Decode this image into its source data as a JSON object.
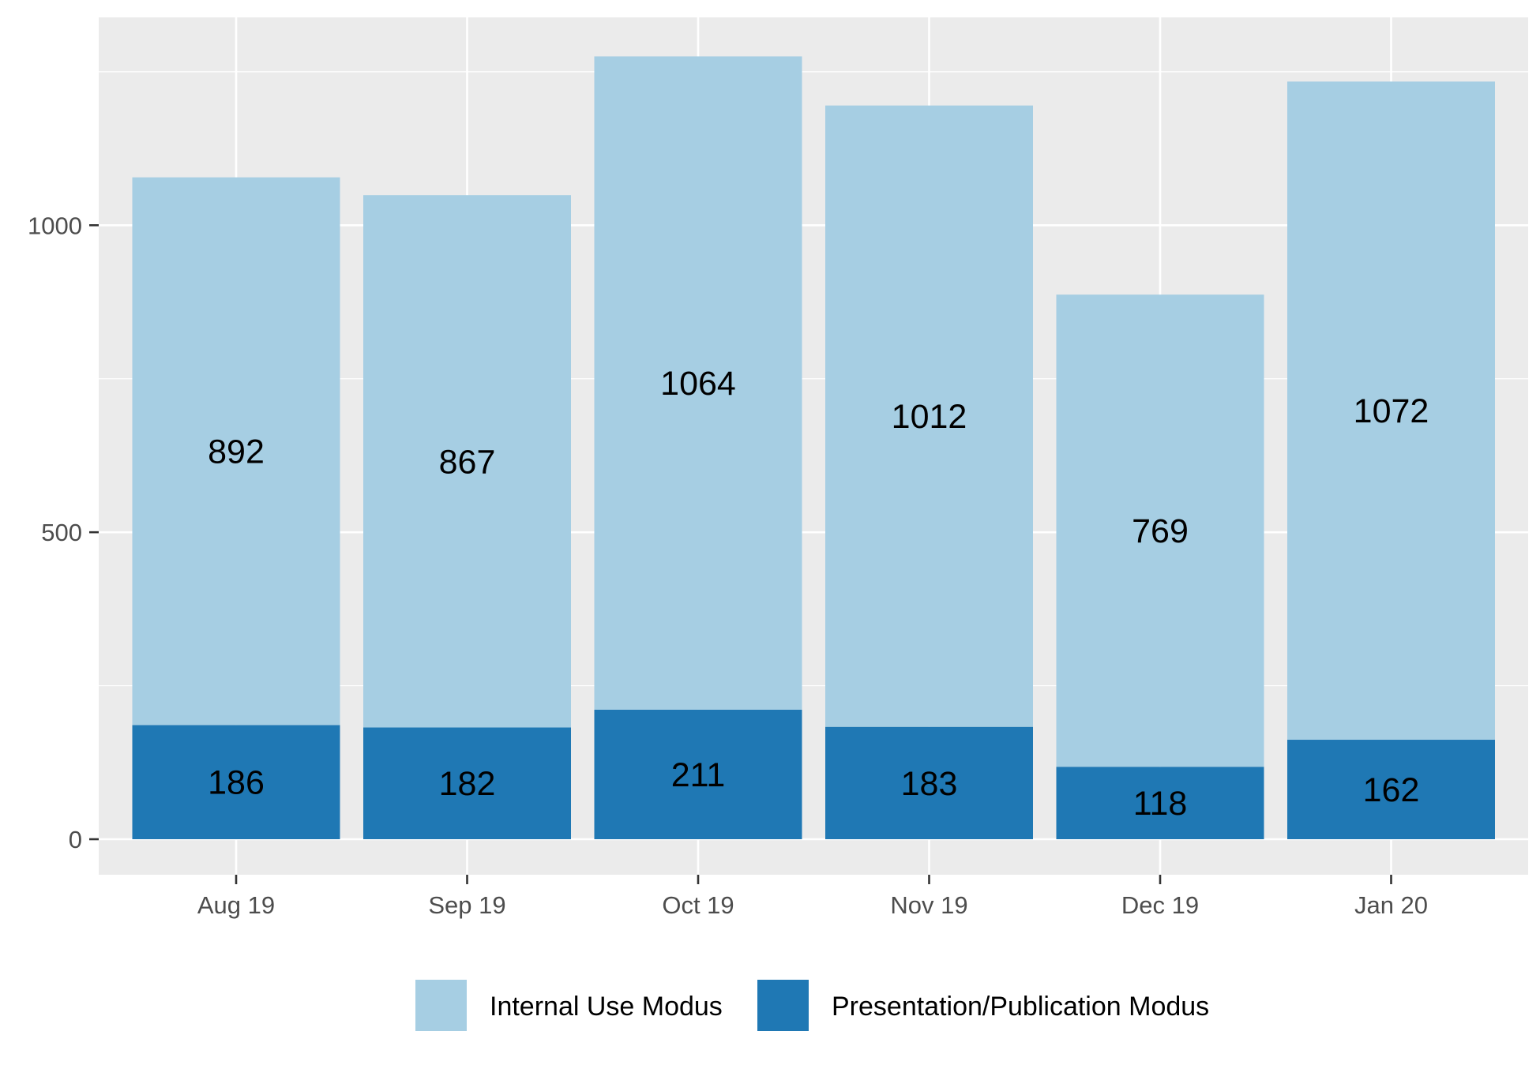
{
  "chart_data": {
    "type": "bar",
    "stacked": true,
    "title": "",
    "xlabel": "",
    "ylabel": "",
    "categories": [
      "Aug 19",
      "Sep 19",
      "Oct 19",
      "Nov 19",
      "Dec 19",
      "Jan 20"
    ],
    "series": [
      {
        "name": "Presentation/Publication Modus",
        "color": "#1f78b4",
        "values": [
          186,
          182,
          211,
          183,
          118,
          162
        ]
      },
      {
        "name": "Internal Use Modus",
        "color": "#a6cee3",
        "values": [
          892,
          867,
          1064,
          1012,
          769,
          1072
        ]
      }
    ],
    "yticks": [
      0,
      500,
      1000
    ],
    "ylim": [
      -60,
      1340
    ],
    "grid": true,
    "legend_position": "bottom",
    "legend_order": [
      "Internal Use Modus",
      "Presentation/Publication Modus"
    ],
    "panel_background": "#ebebeb"
  }
}
